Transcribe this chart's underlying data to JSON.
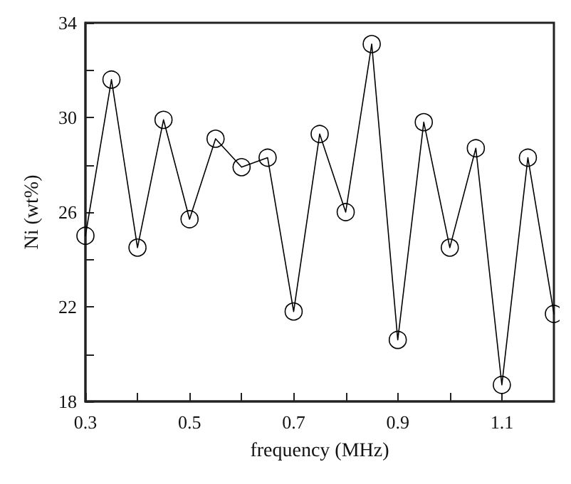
{
  "chart_data": {
    "type": "line",
    "xlabel": "frequency (MHz)",
    "ylabel": "Ni (wt%)",
    "x": [
      0.3,
      0.35,
      0.4,
      0.45,
      0.5,
      0.55,
      0.6,
      0.65,
      0.7,
      0.75,
      0.8,
      0.85,
      0.9,
      0.95,
      1.0,
      1.05,
      1.1,
      1.15,
      1.2
    ],
    "series": [
      {
        "color": "#000000",
        "values": [
          25.0,
          31.6,
          24.5,
          29.9,
          25.7,
          29.1,
          27.9,
          28.3,
          21.8,
          29.3,
          26.0,
          33.1,
          20.6,
          29.8,
          24.5,
          28.7,
          18.7,
          28.3,
          21.7
        ]
      }
    ],
    "xlim": [
      0.3,
      1.2
    ],
    "xticks": [
      0.3,
      {
        "value": 0.4,
        "label": null
      },
      0.5,
      {
        "value": 0.6,
        "label": null
      },
      0.7,
      {
        "value": 0.8,
        "label": null
      },
      0.9,
      {
        "value": 1.0,
        "label": null
      },
      1.1
    ],
    "ylim": [
      18,
      34
    ],
    "yticks": [
      18,
      {
        "value": 20,
        "label": null
      },
      22,
      {
        "value": 24,
        "label": null
      },
      26,
      {
        "value": 28,
        "label": null
      },
      30,
      {
        "value": 32,
        "label": null
      },
      34
    ],
    "marker": "circle",
    "line_style": "solid"
  }
}
